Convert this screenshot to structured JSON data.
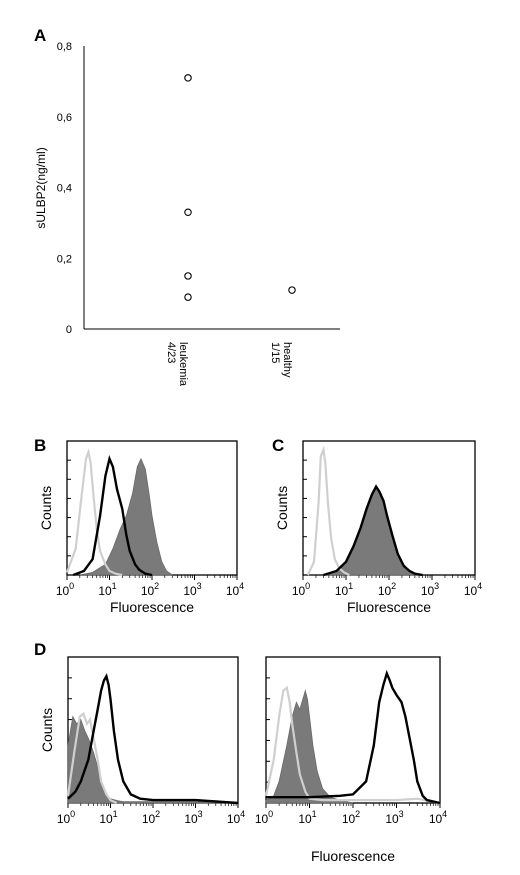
{
  "chart_data": [
    {
      "panel": "A",
      "type": "scatter",
      "ylabel": "sULBP2(ng/ml)",
      "ylim": [
        0,
        0.8
      ],
      "yticks": [
        "0",
        "0,2",
        "0,4",
        "0,6",
        "0,8"
      ],
      "categories": [
        {
          "name": "leukemia",
          "count": "4/23"
        },
        {
          "name": "healthy",
          "count": "1/15"
        }
      ],
      "series": [
        {
          "category": "leukemia",
          "values": [
            0.71,
            0.33,
            0.15,
            0.09
          ]
        },
        {
          "category": "healthy",
          "values": [
            0.11
          ]
        }
      ]
    },
    {
      "panel": "B",
      "type": "area",
      "xlabel": "Fluorescence",
      "ylabel": "Counts",
      "xscale": "log",
      "xlim": [
        1,
        10000
      ],
      "xticks": [
        "0",
        "1",
        "2",
        "3",
        "4"
      ],
      "series": [
        {
          "style": "light-gray-line",
          "x": [
            1,
            1.6,
            2.2,
            2.8,
            3.2,
            3.6,
            4.2,
            5,
            6,
            8,
            10,
            14,
            20
          ],
          "y": [
            0.02,
            0.2,
            0.6,
            0.88,
            0.93,
            0.85,
            0.6,
            0.35,
            0.18,
            0.08,
            0.03,
            0.01,
            0
          ]
        },
        {
          "style": "black-line",
          "x": [
            1.4,
            2.5,
            4,
            6,
            8,
            10,
            12,
            15,
            20,
            25,
            30,
            40,
            50,
            70,
            100
          ],
          "y": [
            0,
            0.03,
            0.12,
            0.45,
            0.75,
            0.88,
            0.82,
            0.65,
            0.5,
            0.3,
            0.18,
            0.08,
            0.04,
            0.01,
            0
          ]
        },
        {
          "style": "gray-filled",
          "x": [
            2,
            4,
            8,
            12,
            18,
            25,
            35,
            45,
            55,
            70,
            85,
            100,
            130,
            170,
            220,
            300
          ],
          "y": [
            0,
            0.02,
            0.08,
            0.2,
            0.35,
            0.45,
            0.62,
            0.82,
            0.88,
            0.8,
            0.62,
            0.45,
            0.25,
            0.1,
            0.03,
            0
          ]
        }
      ]
    },
    {
      "panel": "C",
      "type": "area",
      "xlabel": "Fluorescence",
      "ylabel": "Counts",
      "xscale": "log",
      "xlim": [
        1,
        10000
      ],
      "xticks": [
        "0",
        "1",
        "2",
        "3",
        "4"
      ],
      "series": [
        {
          "style": "light-gray-line",
          "x": [
            1.3,
            1.8,
            2.3,
            2.6,
            3,
            3.3,
            3.8,
            4.5,
            5.5,
            7,
            9,
            12
          ],
          "y": [
            0,
            0.1,
            0.55,
            0.9,
            0.95,
            0.85,
            0.55,
            0.28,
            0.12,
            0.05,
            0.02,
            0
          ]
        },
        {
          "style": "gray-filled",
          "x": [
            3,
            6,
            10,
            15,
            22,
            30,
            40,
            50,
            60,
            75,
            90,
            120,
            160,
            220,
            300,
            400,
            600
          ],
          "y": [
            0,
            0.03,
            0.1,
            0.22,
            0.35,
            0.48,
            0.6,
            0.66,
            0.62,
            0.55,
            0.45,
            0.3,
            0.16,
            0.07,
            0.03,
            0.01,
            0
          ]
        },
        {
          "style": "black-line",
          "x": [
            3,
            6,
            10,
            15,
            22,
            30,
            40,
            50,
            60,
            75,
            90,
            120,
            160,
            220,
            300,
            400,
            600
          ],
          "y": [
            0,
            0.03,
            0.1,
            0.22,
            0.36,
            0.5,
            0.61,
            0.67,
            0.63,
            0.56,
            0.45,
            0.3,
            0.16,
            0.07,
            0.03,
            0.01,
            0
          ]
        }
      ]
    },
    {
      "panel": "D",
      "type": "area",
      "xlabel": "Fluorescence",
      "ylabel": "Counts",
      "xscale": "log",
      "xlim": [
        1,
        10000
      ],
      "xticks": [
        "0",
        "1",
        "2",
        "3",
        "4"
      ],
      "subplots": [
        {
          "series": [
            {
              "style": "light-gray-line",
              "x": [
                1,
                1.4,
                1.9,
                2.3,
                2.8,
                3.3,
                4,
                5,
                6,
                8,
                10,
                14
              ],
              "y": [
                0.05,
                0.35,
                0.6,
                0.62,
                0.55,
                0.58,
                0.45,
                0.3,
                0.15,
                0.06,
                0.02,
                0
              ]
            },
            {
              "style": "gray-filled",
              "x": [
                1,
                1.3,
                1.6,
                2,
                2.5,
                3,
                3.5,
                4,
                5,
                6,
                8,
                10,
                15,
                20,
                40,
                100,
                1000,
                10000
              ],
              "y": [
                0.4,
                0.6,
                0.55,
                0.58,
                0.5,
                0.45,
                0.4,
                0.35,
                0.25,
                0.14,
                0.06,
                0.03,
                0.015,
                0.01,
                0.01,
                0.01,
                0.01,
                0
              ]
            },
            {
              "style": "black-line",
              "x": [
                1,
                1.5,
                2,
                3,
                4,
                5,
                6,
                7,
                8,
                9,
                10,
                12,
                15,
                20,
                30,
                50,
                100,
                1000,
                10000
              ],
              "y": [
                0.03,
                0.08,
                0.15,
                0.3,
                0.5,
                0.65,
                0.78,
                0.85,
                0.88,
                0.82,
                0.72,
                0.5,
                0.3,
                0.15,
                0.06,
                0.03,
                0.02,
                0.02,
                0
              ]
            }
          ]
        },
        {
          "series": [
            {
              "style": "light-gray-line",
              "x": [
                1,
                1.5,
                2,
                2.5,
                3,
                3.5,
                4,
                5,
                6,
                8,
                10,
                20,
                100,
                1000,
                3000,
                10000
              ],
              "y": [
                0.05,
                0.3,
                0.6,
                0.78,
                0.8,
                0.7,
                0.55,
                0.35,
                0.2,
                0.08,
                0.03,
                0.02,
                0.02,
                0.02,
                0.03,
                0
              ]
            },
            {
              "style": "gray-filled",
              "x": [
                1,
                1.5,
                2,
                3,
                4,
                5,
                6,
                7,
                8,
                9,
                10,
                12,
                15,
                20,
                30,
                50,
                100
              ],
              "y": [
                0.02,
                0.05,
                0.15,
                0.4,
                0.6,
                0.7,
                0.65,
                0.72,
                0.78,
                0.72,
                0.6,
                0.4,
                0.22,
                0.1,
                0.04,
                0.02,
                0
              ]
            },
            {
              "style": "black-line",
              "x": [
                1,
                10,
                50,
                100,
                200,
                300,
                400,
                500,
                600,
                700,
                800,
                1000,
                1300,
                1600,
                2000,
                2500,
                3000,
                4000,
                5000,
                10000
              ],
              "y": [
                0.04,
                0.04,
                0.05,
                0.06,
                0.15,
                0.4,
                0.7,
                0.82,
                0.9,
                0.85,
                0.8,
                0.75,
                0.7,
                0.6,
                0.45,
                0.3,
                0.15,
                0.05,
                0.02,
                0
              ]
            }
          ]
        }
      ]
    }
  ]
}
